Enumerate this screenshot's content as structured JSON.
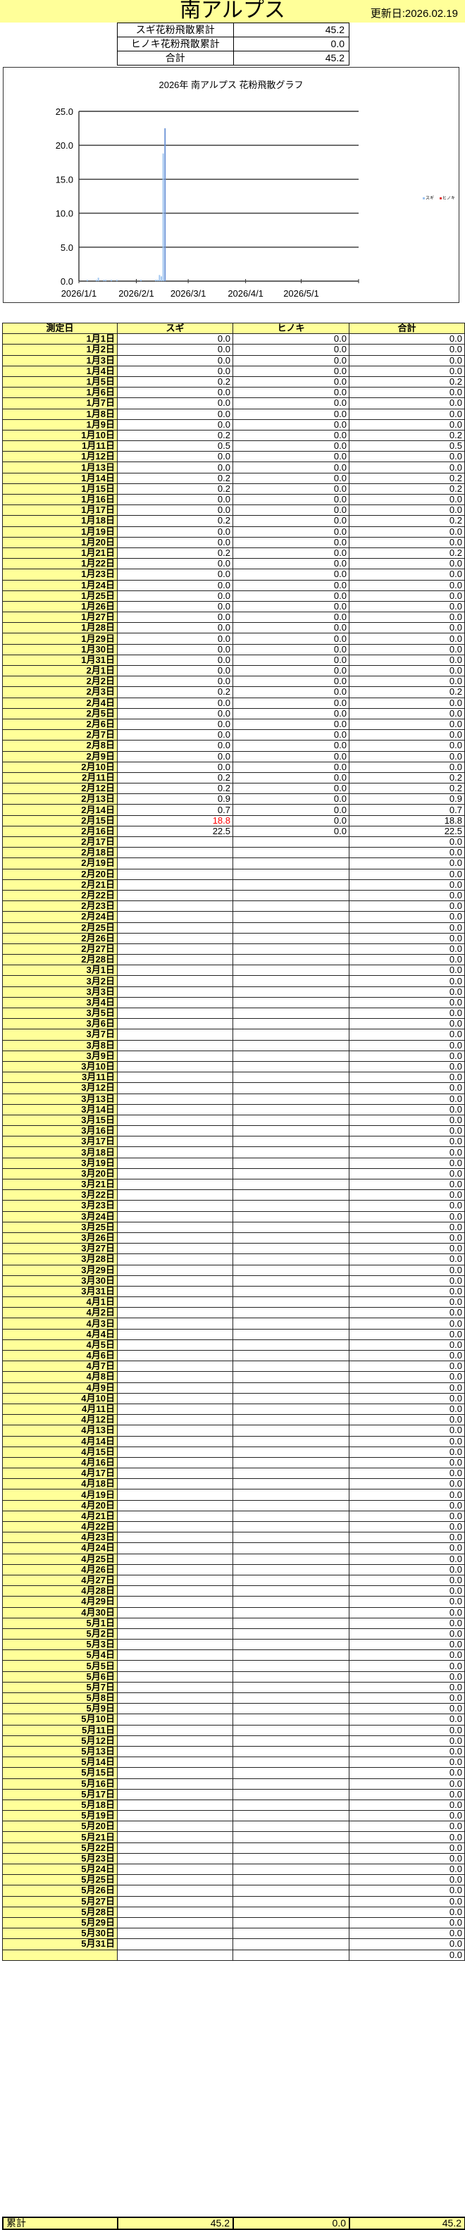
{
  "header": {
    "title": "南アルプス",
    "updated": "更新日:2026.02.19"
  },
  "summary": [
    {
      "label": "スギ花粉飛散累計",
      "value": "45.2"
    },
    {
      "label": "ヒノキ花粉飛散累計",
      "value": "0.0"
    },
    {
      "label": "合計",
      "value": "45.2"
    }
  ],
  "colors": {
    "band": "#ffff99",
    "sugi": "#9cc3f0",
    "sugi_peak": "#6b93d6",
    "hinoki": "#e03030",
    "highlight": "#ff0000"
  },
  "chart_data": {
    "type": "bar",
    "title": "2026年 南アルプス 花粉飛散グラフ",
    "xlabel": "",
    "ylabel": "",
    "ylim": [
      0,
      25
    ],
    "yticks": [
      "0.0",
      "5.0",
      "10.0",
      "15.0",
      "20.0",
      "25.0"
    ],
    "xticks": [
      "2026/1/1",
      "2026/2/1",
      "2026/3/1",
      "2026/4/1",
      "2026/5/1"
    ],
    "xlim": [
      "2026/1/1",
      "2026/6/1"
    ],
    "grid": true,
    "legend": "right",
    "x_start": "2026/1/1",
    "series": [
      {
        "name": "スギ",
        "values": [
          0.0,
          0.0,
          0.0,
          0.0,
          0.2,
          0.0,
          0.0,
          0.0,
          0.0,
          0.2,
          0.5,
          0.0,
          0.0,
          0.2,
          0.2,
          0.0,
          0.0,
          0.2,
          0.0,
          0.0,
          0.2,
          0.0,
          0.0,
          0.0,
          0.0,
          0.0,
          0.0,
          0.0,
          0.0,
          0.0,
          0.0,
          0.0,
          0.0,
          0.2,
          0.0,
          0.0,
          0.0,
          0.0,
          0.0,
          0.0,
          0.0,
          0.2,
          0.2,
          0.9,
          0.7,
          18.8,
          22.5
        ]
      },
      {
        "name": "ヒノキ",
        "values": [
          0,
          0,
          0,
          0,
          0,
          0,
          0,
          0,
          0,
          0,
          0,
          0,
          0,
          0,
          0,
          0,
          0,
          0,
          0,
          0,
          0,
          0,
          0,
          0,
          0,
          0,
          0,
          0,
          0,
          0,
          0,
          0,
          0,
          0,
          0,
          0,
          0,
          0,
          0,
          0,
          0,
          0,
          0,
          0,
          0,
          0,
          0
        ]
      }
    ]
  },
  "table": {
    "headers": [
      "測定日",
      "スギ",
      "ヒノキ",
      "合計"
    ],
    "red_cells": [
      [
        45,
        1
      ]
    ],
    "rows": [
      [
        "1月1日",
        "0.0",
        "0.0",
        "0.0"
      ],
      [
        "1月2日",
        "0.0",
        "0.0",
        "0.0"
      ],
      [
        "1月3日",
        "0.0",
        "0.0",
        "0.0"
      ],
      [
        "1月4日",
        "0.0",
        "0.0",
        "0.0"
      ],
      [
        "1月5日",
        "0.2",
        "0.0",
        "0.2"
      ],
      [
        "1月6日",
        "0.0",
        "0.0",
        "0.0"
      ],
      [
        "1月7日",
        "0.0",
        "0.0",
        "0.0"
      ],
      [
        "1月8日",
        "0.0",
        "0.0",
        "0.0"
      ],
      [
        "1月9日",
        "0.0",
        "0.0",
        "0.0"
      ],
      [
        "1月10日",
        "0.2",
        "0.0",
        "0.2"
      ],
      [
        "1月11日",
        "0.5",
        "0.0",
        "0.5"
      ],
      [
        "1月12日",
        "0.0",
        "0.0",
        "0.0"
      ],
      [
        "1月13日",
        "0.0",
        "0.0",
        "0.0"
      ],
      [
        "1月14日",
        "0.2",
        "0.0",
        "0.2"
      ],
      [
        "1月15日",
        "0.2",
        "0.0",
        "0.2"
      ],
      [
        "1月16日",
        "0.0",
        "0.0",
        "0.0"
      ],
      [
        "1月17日",
        "0.0",
        "0.0",
        "0.0"
      ],
      [
        "1月18日",
        "0.2",
        "0.0",
        "0.2"
      ],
      [
        "1月19日",
        "0.0",
        "0.0",
        "0.0"
      ],
      [
        "1月20日",
        "0.0",
        "0.0",
        "0.0"
      ],
      [
        "1月21日",
        "0.2",
        "0.0",
        "0.2"
      ],
      [
        "1月22日",
        "0.0",
        "0.0",
        "0.0"
      ],
      [
        "1月23日",
        "0.0",
        "0.0",
        "0.0"
      ],
      [
        "1月24日",
        "0.0",
        "0.0",
        "0.0"
      ],
      [
        "1月25日",
        "0.0",
        "0.0",
        "0.0"
      ],
      [
        "1月26日",
        "0.0",
        "0.0",
        "0.0"
      ],
      [
        "1月27日",
        "0.0",
        "0.0",
        "0.0"
      ],
      [
        "1月28日",
        "0.0",
        "0.0",
        "0.0"
      ],
      [
        "1月29日",
        "0.0",
        "0.0",
        "0.0"
      ],
      [
        "1月30日",
        "0.0",
        "0.0",
        "0.0"
      ],
      [
        "1月31日",
        "0.0",
        "0.0",
        "0.0"
      ],
      [
        "2月1日",
        "0.0",
        "0.0",
        "0.0"
      ],
      [
        "2月2日",
        "0.0",
        "0.0",
        "0.0"
      ],
      [
        "2月3日",
        "0.2",
        "0.0",
        "0.2"
      ],
      [
        "2月4日",
        "0.0",
        "0.0",
        "0.0"
      ],
      [
        "2月5日",
        "0.0",
        "0.0",
        "0.0"
      ],
      [
        "2月6日",
        "0.0",
        "0.0",
        "0.0"
      ],
      [
        "2月7日",
        "0.0",
        "0.0",
        "0.0"
      ],
      [
        "2月8日",
        "0.0",
        "0.0",
        "0.0"
      ],
      [
        "2月9日",
        "0.0",
        "0.0",
        "0.0"
      ],
      [
        "2月10日",
        "0.0",
        "0.0",
        "0.0"
      ],
      [
        "2月11日",
        "0.2",
        "0.0",
        "0.2"
      ],
      [
        "2月12日",
        "0.2",
        "0.0",
        "0.2"
      ],
      [
        "2月13日",
        "0.9",
        "0.0",
        "0.9"
      ],
      [
        "2月14日",
        "0.7",
        "0.0",
        "0.7"
      ],
      [
        "2月15日",
        "18.8",
        "0.0",
        "18.8"
      ],
      [
        "2月16日",
        "22.5",
        "0.0",
        "22.5"
      ],
      [
        "2月17日",
        "",
        "",
        "0.0"
      ],
      [
        "2月18日",
        "",
        "",
        "0.0"
      ],
      [
        "2月19日",
        "",
        "",
        "0.0"
      ],
      [
        "2月20日",
        "",
        "",
        "0.0"
      ],
      [
        "2月21日",
        "",
        "",
        "0.0"
      ],
      [
        "2月22日",
        "",
        "",
        "0.0"
      ],
      [
        "2月23日",
        "",
        "",
        "0.0"
      ],
      [
        "2月24日",
        "",
        "",
        "0.0"
      ],
      [
        "2月25日",
        "",
        "",
        "0.0"
      ],
      [
        "2月26日",
        "",
        "",
        "0.0"
      ],
      [
        "2月27日",
        "",
        "",
        "0.0"
      ],
      [
        "2月28日",
        "",
        "",
        "0.0"
      ],
      [
        "3月1日",
        "",
        "",
        "0.0"
      ],
      [
        "3月2日",
        "",
        "",
        "0.0"
      ],
      [
        "3月3日",
        "",
        "",
        "0.0"
      ],
      [
        "3月4日",
        "",
        "",
        "0.0"
      ],
      [
        "3月5日",
        "",
        "",
        "0.0"
      ],
      [
        "3月6日",
        "",
        "",
        "0.0"
      ],
      [
        "3月7日",
        "",
        "",
        "0.0"
      ],
      [
        "3月8日",
        "",
        "",
        "0.0"
      ],
      [
        "3月9日",
        "",
        "",
        "0.0"
      ],
      [
        "3月10日",
        "",
        "",
        "0.0"
      ],
      [
        "3月11日",
        "",
        "",
        "0.0"
      ],
      [
        "3月12日",
        "",
        "",
        "0.0"
      ],
      [
        "3月13日",
        "",
        "",
        "0.0"
      ],
      [
        "3月14日",
        "",
        "",
        "0.0"
      ],
      [
        "3月15日",
        "",
        "",
        "0.0"
      ],
      [
        "3月16日",
        "",
        "",
        "0.0"
      ],
      [
        "3月17日",
        "",
        "",
        "0.0"
      ],
      [
        "3月18日",
        "",
        "",
        "0.0"
      ],
      [
        "3月19日",
        "",
        "",
        "0.0"
      ],
      [
        "3月20日",
        "",
        "",
        "0.0"
      ],
      [
        "3月21日",
        "",
        "",
        "0.0"
      ],
      [
        "3月22日",
        "",
        "",
        "0.0"
      ],
      [
        "3月23日",
        "",
        "",
        "0.0"
      ],
      [
        "3月24日",
        "",
        "",
        "0.0"
      ],
      [
        "3月25日",
        "",
        "",
        "0.0"
      ],
      [
        "3月26日",
        "",
        "",
        "0.0"
      ],
      [
        "3月27日",
        "",
        "",
        "0.0"
      ],
      [
        "3月28日",
        "",
        "",
        "0.0"
      ],
      [
        "3月29日",
        "",
        "",
        "0.0"
      ],
      [
        "3月30日",
        "",
        "",
        "0.0"
      ],
      [
        "3月31日",
        "",
        "",
        "0.0"
      ],
      [
        "4月1日",
        "",
        "",
        "0.0"
      ],
      [
        "4月2日",
        "",
        "",
        "0.0"
      ],
      [
        "4月3日",
        "",
        "",
        "0.0"
      ],
      [
        "4月4日",
        "",
        "",
        "0.0"
      ],
      [
        "4月5日",
        "",
        "",
        "0.0"
      ],
      [
        "4月6日",
        "",
        "",
        "0.0"
      ],
      [
        "4月7日",
        "",
        "",
        "0.0"
      ],
      [
        "4月8日",
        "",
        "",
        "0.0"
      ],
      [
        "4月9日",
        "",
        "",
        "0.0"
      ],
      [
        "4月10日",
        "",
        "",
        "0.0"
      ],
      [
        "4月11日",
        "",
        "",
        "0.0"
      ],
      [
        "4月12日",
        "",
        "",
        "0.0"
      ],
      [
        "4月13日",
        "",
        "",
        "0.0"
      ],
      [
        "4月14日",
        "",
        "",
        "0.0"
      ],
      [
        "4月15日",
        "",
        "",
        "0.0"
      ],
      [
        "4月16日",
        "",
        "",
        "0.0"
      ],
      [
        "4月17日",
        "",
        "",
        "0.0"
      ],
      [
        "4月18日",
        "",
        "",
        "0.0"
      ],
      [
        "4月19日",
        "",
        "",
        "0.0"
      ],
      [
        "4月20日",
        "",
        "",
        "0.0"
      ],
      [
        "4月21日",
        "",
        "",
        "0.0"
      ],
      [
        "4月22日",
        "",
        "",
        "0.0"
      ],
      [
        "4月23日",
        "",
        "",
        "0.0"
      ],
      [
        "4月24日",
        "",
        "",
        "0.0"
      ],
      [
        "4月25日",
        "",
        "",
        "0.0"
      ],
      [
        "4月26日",
        "",
        "",
        "0.0"
      ],
      [
        "4月27日",
        "",
        "",
        "0.0"
      ],
      [
        "4月28日",
        "",
        "",
        "0.0"
      ],
      [
        "4月29日",
        "",
        "",
        "0.0"
      ],
      [
        "4月30日",
        "",
        "",
        "0.0"
      ],
      [
        "5月1日",
        "",
        "",
        "0.0"
      ],
      [
        "5月2日",
        "",
        "",
        "0.0"
      ],
      [
        "5月3日",
        "",
        "",
        "0.0"
      ],
      [
        "5月4日",
        "",
        "",
        "0.0"
      ],
      [
        "5月5日",
        "",
        "",
        "0.0"
      ],
      [
        "5月6日",
        "",
        "",
        "0.0"
      ],
      [
        "5月7日",
        "",
        "",
        "0.0"
      ],
      [
        "5月8日",
        "",
        "",
        "0.0"
      ],
      [
        "5月9日",
        "",
        "",
        "0.0"
      ],
      [
        "5月10日",
        "",
        "",
        "0.0"
      ],
      [
        "5月11日",
        "",
        "",
        "0.0"
      ],
      [
        "5月12日",
        "",
        "",
        "0.0"
      ],
      [
        "5月13日",
        "",
        "",
        "0.0"
      ],
      [
        "5月14日",
        "",
        "",
        "0.0"
      ],
      [
        "5月15日",
        "",
        "",
        "0.0"
      ],
      [
        "5月16日",
        "",
        "",
        "0.0"
      ],
      [
        "5月17日",
        "",
        "",
        "0.0"
      ],
      [
        "5月18日",
        "",
        "",
        "0.0"
      ],
      [
        "5月19日",
        "",
        "",
        "0.0"
      ],
      [
        "5月20日",
        "",
        "",
        "0.0"
      ],
      [
        "5月21日",
        "",
        "",
        "0.0"
      ],
      [
        "5月22日",
        "",
        "",
        "0.0"
      ],
      [
        "5月23日",
        "",
        "",
        "0.0"
      ],
      [
        "5月24日",
        "",
        "",
        "0.0"
      ],
      [
        "5月25日",
        "",
        "",
        "0.0"
      ],
      [
        "5月26日",
        "",
        "",
        "0.0"
      ],
      [
        "5月27日",
        "",
        "",
        "0.0"
      ],
      [
        "5月28日",
        "",
        "",
        "0.0"
      ],
      [
        "5月29日",
        "",
        "",
        "0.0"
      ],
      [
        "5月30日",
        "",
        "",
        "0.0"
      ],
      [
        "5月31日",
        "",
        "",
        "0.0"
      ],
      [
        "",
        "",
        "",
        "0.0"
      ]
    ],
    "totals": {
      "label": "累計",
      "sugi": "45.2",
      "hinoki": "0.0",
      "total": "45.2"
    }
  }
}
